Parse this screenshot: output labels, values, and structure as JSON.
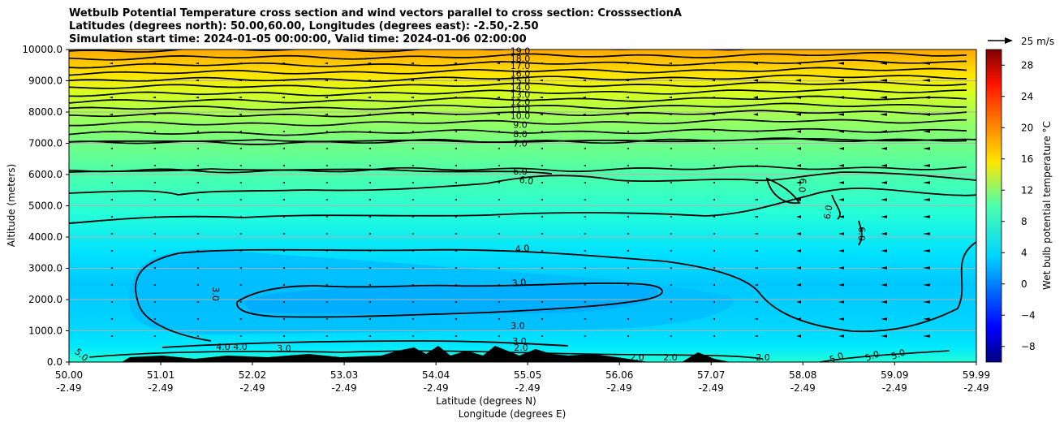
{
  "chart_data": {
    "type": "heatmap",
    "title_lines": [
      "Wetbulb Potential Temperature cross section and wind vectors parallel to cross section: CrosssectionA",
      "Latitudes (degrees north): 50.00,60.00, Longitudes (degrees east): -2.50,-2.50",
      "Simulation start time: 2024-01-05 00:00:00, Valid time: 2024-01-06 02:00:00"
    ],
    "xlabel": "Latitude (degrees N)",
    "xlabel2": "Longitude (degrees E)",
    "ylabel": "Altitude (meters)",
    "colorbar_label": "Wet bulb potential temperature °C",
    "colorbar_range": [
      -10,
      30
    ],
    "colorbar_ticks": [
      "−8",
      "−4",
      "0",
      "4",
      "8",
      "12",
      "16",
      "20",
      "24",
      "28"
    ],
    "colorbar_tick_values": [
      -8,
      -4,
      0,
      4,
      8,
      12,
      16,
      20,
      24,
      28
    ],
    "xlim": [
      50.0,
      59.99
    ],
    "ylim": [
      0,
      10000
    ],
    "x_ticks": [
      {
        "lat": "50.00",
        "lon": "-2.49"
      },
      {
        "lat": "51.01",
        "lon": "-2.49"
      },
      {
        "lat": "52.02",
        "lon": "-2.49"
      },
      {
        "lat": "53.03",
        "lon": "-2.49"
      },
      {
        "lat": "54.04",
        "lon": "-2.49"
      },
      {
        "lat": "55.05",
        "lon": "-2.49"
      },
      {
        "lat": "56.06",
        "lon": "-2.49"
      },
      {
        "lat": "57.07",
        "lon": "-2.49"
      },
      {
        "lat": "58.08",
        "lon": "-2.49"
      },
      {
        "lat": "59.09",
        "lon": "-2.49"
      },
      {
        "lat": "59.99",
        "lon": "-2.49"
      }
    ],
    "y_ticks": [
      "0.0",
      "1000.0",
      "2000.0",
      "3000.0",
      "4000.0",
      "5000.0",
      "6000.0",
      "7000.0",
      "8000.0",
      "9000.0",
      "10000.0"
    ],
    "y_tick_values": [
      0,
      1000,
      2000,
      3000,
      4000,
      5000,
      6000,
      7000,
      8000,
      9000,
      10000
    ],
    "grid": true,
    "vector_key_label": "25 m/s",
    "contour_labels_upper": [
      "19.0",
      "18.0",
      "17.0",
      "16.0",
      "15.0",
      "14.0",
      "13.0",
      "12.0",
      "11.0",
      "10.0",
      "9.0",
      "8.0",
      "7.0",
      "6.0"
    ],
    "contour_levels_upper": [
      {
        "value": 19.0,
        "altitude": 9960
      },
      {
        "value": 18.0,
        "altitude": 9720
      },
      {
        "value": 17.0,
        "altitude": 9480
      },
      {
        "value": 16.0,
        "altitude": 9240
      },
      {
        "value": 15.0,
        "altitude": 9010
      },
      {
        "value": 14.0,
        "altitude": 8790
      },
      {
        "value": 13.0,
        "altitude": 8560
      },
      {
        "value": 12.0,
        "altitude": 8330
      },
      {
        "value": 11.0,
        "altitude": 8100
      },
      {
        "value": 10.0,
        "altitude": 7880
      },
      {
        "value": 9.0,
        "altitude": 7600
      },
      {
        "value": 8.0,
        "altitude": 7300
      },
      {
        "value": 7.0,
        "altitude": 7000
      },
      {
        "value": 6.0,
        "altitude": 6100
      }
    ],
    "contour_labels_mid": [
      "6.0",
      "6.0",
      "6.0",
      "6.0",
      "4.0",
      "3.0",
      "3.0",
      "3.0",
      "4.0",
      "4.0",
      "3.0",
      "2.0"
    ],
    "contour_labels_low": [
      "5.0",
      "5.0",
      "5.0",
      "5.0",
      "2.0",
      "2.0",
      "2.0",
      "3.0"
    ]
  }
}
